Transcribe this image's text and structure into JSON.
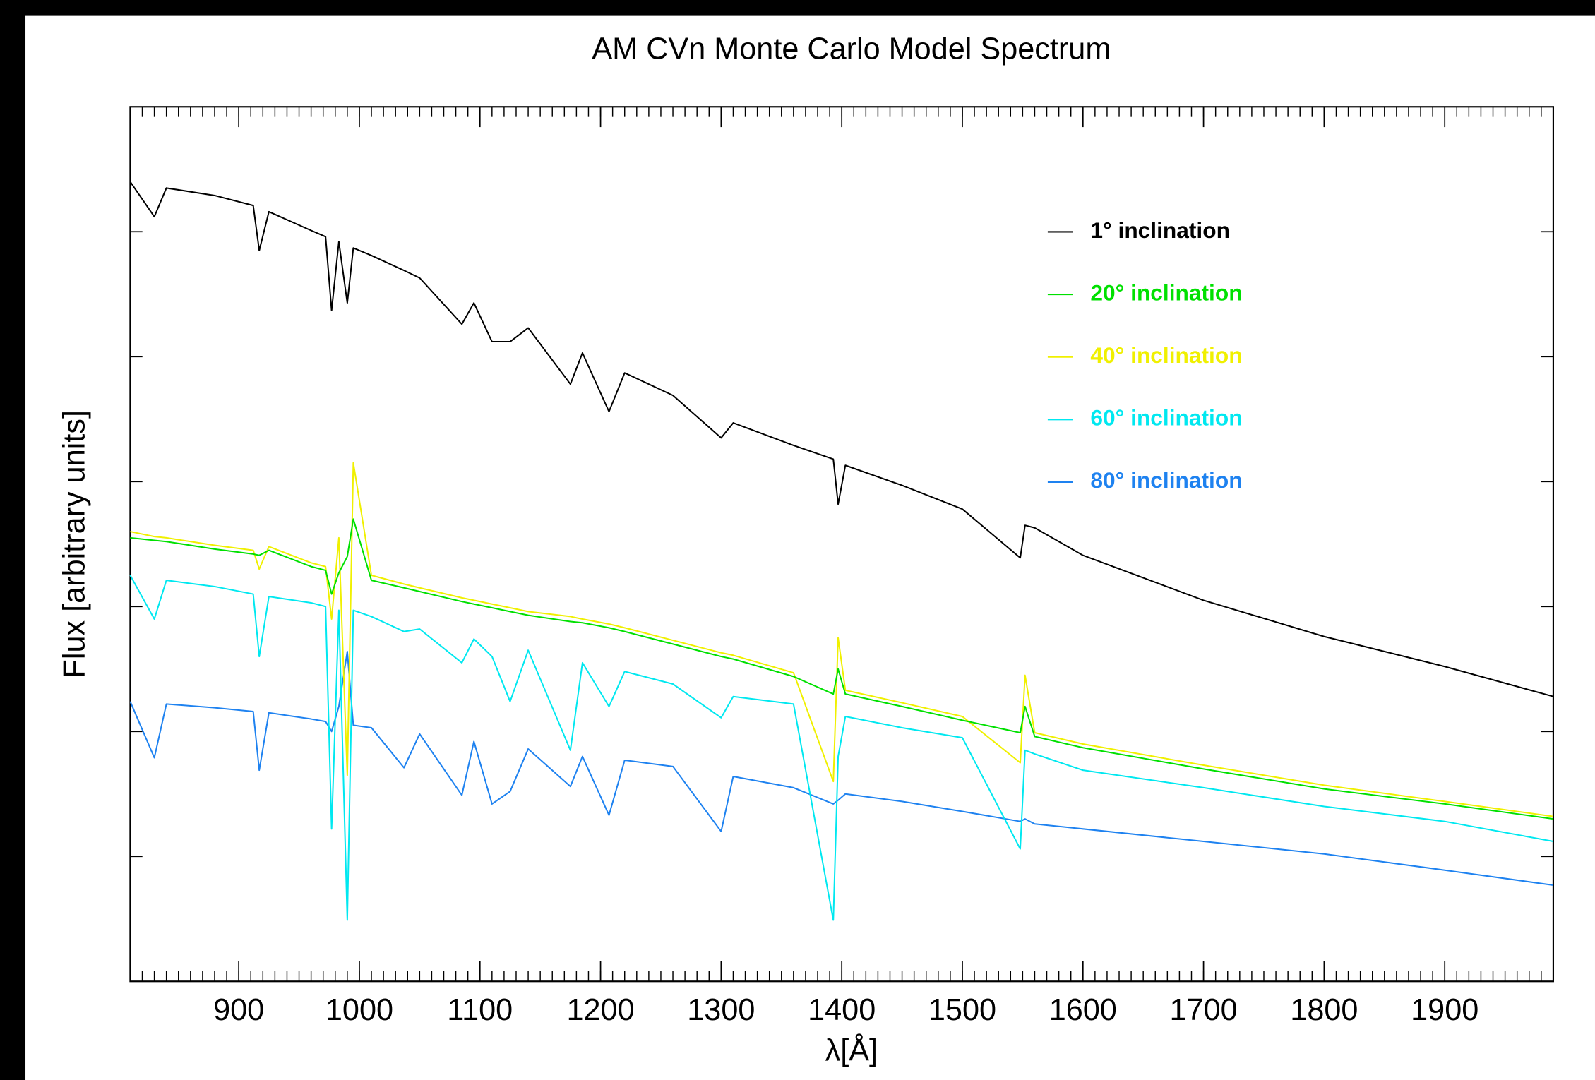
{
  "chart_data": {
    "type": "line",
    "title": "AM CVn Monte Carlo Model Spectrum",
    "x_label": "λ[Å]",
    "y_label": "Flux [arbitrary units]",
    "x": [
      810,
      830,
      840,
      880,
      912,
      917,
      925,
      960,
      972,
      977,
      983,
      990,
      995,
      1010,
      1037,
      1050,
      1085,
      1095,
      1110,
      1125,
      1140,
      1175,
      1185,
      1207,
      1220,
      1260,
      1300,
      1310,
      1360,
      1393,
      1397,
      1403,
      1450,
      1500,
      1548,
      1552,
      1560,
      1600,
      1700,
      1800,
      1900,
      1990
    ],
    "series": [
      {
        "name": "1° inclination",
        "color": "#000000",
        "values": [
          6.4,
          6.12,
          6.35,
          6.29,
          6.21,
          5.85,
          6.16,
          6.01,
          5.96,
          5.37,
          5.92,
          5.43,
          5.87,
          5.81,
          5.69,
          5.63,
          5.26,
          5.43,
          5.12,
          5.12,
          5.23,
          4.78,
          5.03,
          4.56,
          4.87,
          4.69,
          4.35,
          4.47,
          4.29,
          4.18,
          3.82,
          4.13,
          3.97,
          3.78,
          3.39,
          3.65,
          3.63,
          3.41,
          3.05,
          2.76,
          2.52,
          2.28
        ]
      },
      {
        "name": "20° inclination",
        "color": "#00e000",
        "values": [
          3.55,
          3.53,
          3.52,
          3.46,
          3.42,
          3.41,
          3.45,
          3.32,
          3.29,
          3.1,
          3.27,
          3.4,
          3.7,
          3.21,
          3.15,
          3.12,
          3.04,
          3.02,
          2.99,
          2.96,
          2.93,
          2.88,
          2.87,
          2.83,
          2.8,
          2.7,
          2.6,
          2.58,
          2.44,
          2.3,
          2.5,
          2.3,
          2.2,
          2.09,
          1.99,
          2.2,
          1.96,
          1.87,
          1.7,
          1.54,
          1.42,
          1.3
        ]
      },
      {
        "name": "40° inclination",
        "color": "#f0f000",
        "values": [
          3.6,
          3.56,
          3.55,
          3.49,
          3.45,
          3.3,
          3.48,
          3.35,
          3.32,
          2.9,
          3.55,
          1.65,
          4.15,
          3.25,
          3.18,
          3.15,
          3.07,
          3.05,
          3.02,
          2.99,
          2.96,
          2.92,
          2.9,
          2.86,
          2.83,
          2.73,
          2.63,
          2.61,
          2.47,
          1.6,
          2.75,
          2.33,
          2.23,
          2.12,
          1.75,
          2.45,
          1.99,
          1.9,
          1.73,
          1.57,
          1.44,
          1.32
        ]
      },
      {
        "name": "60° inclination",
        "color": "#00e8f0",
        "values": [
          3.25,
          2.9,
          3.21,
          3.16,
          3.1,
          2.6,
          3.08,
          3.03,
          3.0,
          1.22,
          2.97,
          0.49,
          2.97,
          2.92,
          2.8,
          2.82,
          2.55,
          2.74,
          2.6,
          2.24,
          2.65,
          1.85,
          2.55,
          2.2,
          2.48,
          2.38,
          2.11,
          2.28,
          2.22,
          0.49,
          1.8,
          2.12,
          2.03,
          1.95,
          1.06,
          1.85,
          1.82,
          1.69,
          1.55,
          1.4,
          1.28,
          1.12
        ]
      },
      {
        "name": "80° inclination",
        "color": "#1e82f0",
        "values": [
          2.24,
          1.79,
          2.22,
          2.19,
          2.16,
          1.69,
          2.15,
          2.1,
          2.08,
          2.0,
          2.2,
          2.64,
          2.05,
          2.03,
          1.71,
          1.98,
          1.49,
          1.92,
          1.42,
          1.52,
          1.86,
          1.56,
          1.8,
          1.33,
          1.77,
          1.72,
          1.2,
          1.64,
          1.55,
          1.42,
          1.45,
          1.5,
          1.44,
          1.36,
          1.28,
          1.3,
          1.26,
          1.22,
          1.12,
          1.02,
          0.89,
          0.77
        ]
      }
    ],
    "xlim": [
      810,
      1990
    ],
    "xticks": [
      900,
      1000,
      1100,
      1200,
      1300,
      1400,
      1500,
      1600,
      1700,
      1800,
      1900
    ],
    "ylim": [
      0,
      7
    ],
    "yticks": [
      1,
      2,
      3,
      4,
      5,
      6
    ],
    "legend": "upper right",
    "grid": false
  }
}
